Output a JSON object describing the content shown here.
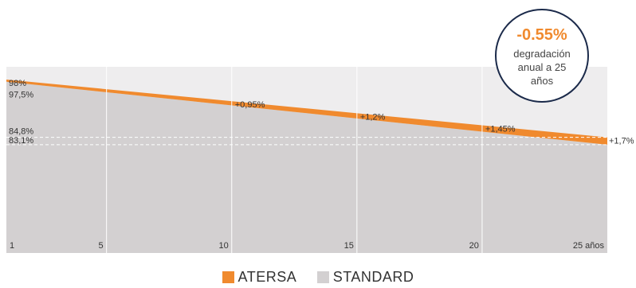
{
  "chart_data": {
    "type": "area",
    "x": [
      1,
      25
    ],
    "xlim": [
      1,
      25
    ],
    "ylim": [
      60,
      100
    ],
    "x_ticks": [
      {
        "value": 1,
        "label": "1"
      },
      {
        "value": 5,
        "label": "5"
      },
      {
        "value": 10,
        "label": "10"
      },
      {
        "value": 15,
        "label": "15"
      },
      {
        "value": 20,
        "label": "20"
      },
      {
        "value": 25,
        "label": "25 años"
      }
    ],
    "series": [
      {
        "name": "ATERSA",
        "color": "#F08A2E",
        "values": [
          98,
          84.8
        ]
      },
      {
        "name": "STANDARD",
        "color": "#D3D0D1",
        "values": [
          97.5,
          83.1
        ]
      }
    ],
    "start_labels": [
      {
        "value": 98,
        "label": "98%"
      },
      {
        "value": 97.5,
        "label": "97,5%"
      },
      {
        "value": 84.8,
        "label": "84,8%"
      },
      {
        "value": 83.1,
        "label": "83,1%"
      }
    ],
    "gap_annotations": [
      {
        "x": 10,
        "label": "+0,95%"
      },
      {
        "x": 15,
        "label": "+1,2%"
      },
      {
        "x": 20,
        "label": "+1,45%"
      },
      {
        "x": 25,
        "label": "+1,7%"
      }
    ],
    "badge": {
      "value": "-0.55%",
      "lines": [
        "degradación",
        "anual a 25",
        "años"
      ]
    },
    "grid": true,
    "legend_position": "bottom"
  },
  "legend": [
    {
      "name": "ATERSA",
      "color": "#F08A2E"
    },
    {
      "name": "STANDARD",
      "color": "#D3D0D1"
    }
  ]
}
